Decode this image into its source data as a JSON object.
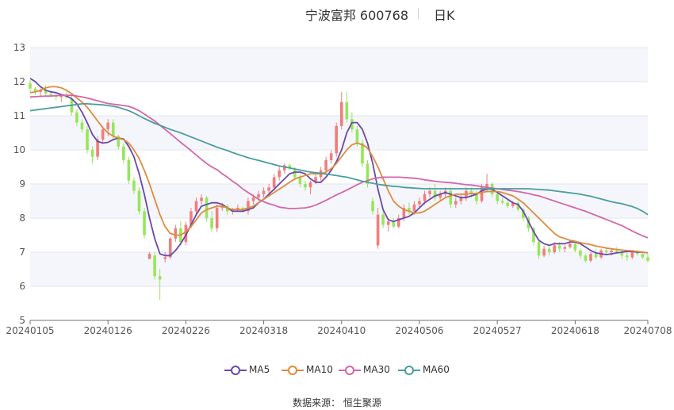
{
  "header": {
    "title": "宁波富邦 600768",
    "period": "日K"
  },
  "source": "数据来源：  恒生聚源",
  "chart_data": {
    "type": "candlestick",
    "y_ticks": [
      "5",
      "6",
      "7",
      "8",
      "9",
      "10",
      "11",
      "12",
      "13"
    ],
    "ylim": [
      5,
      13
    ],
    "x_tick_labels": [
      "20240105",
      "20240126",
      "20240226",
      "20240318",
      "20240410",
      "20240506",
      "20240527",
      "20240618",
      "20240708"
    ],
    "x_tick_index": [
      0,
      15,
      30,
      45,
      60,
      75,
      90,
      105,
      119
    ],
    "num_bars": 120,
    "grid": true,
    "legend_position": "bottom",
    "colors": {
      "up": "#f07d7d",
      "down": "#96e65a",
      "MA5": "#6a48a8",
      "MA10": "#e08a3c",
      "MA30": "#d466a8",
      "MA60": "#4a9da0"
    },
    "ohlc": [
      [
        11.95,
        12.05,
        11.7,
        11.8
      ],
      [
        11.8,
        11.85,
        11.6,
        11.7
      ],
      [
        11.7,
        11.8,
        11.55,
        11.75
      ],
      [
        11.75,
        11.9,
        11.6,
        11.65
      ],
      [
        11.65,
        11.75,
        11.55,
        11.6
      ],
      [
        11.6,
        11.7,
        11.45,
        11.55
      ],
      [
        11.55,
        11.65,
        11.4,
        11.6
      ],
      [
        11.6,
        11.7,
        11.5,
        11.55
      ],
      [
        11.5,
        11.6,
        11.0,
        11.1
      ],
      [
        11.1,
        11.2,
        10.7,
        10.8
      ],
      [
        10.8,
        10.9,
        10.5,
        10.6
      ],
      [
        10.6,
        10.7,
        9.9,
        10.0
      ],
      [
        10.0,
        10.1,
        9.6,
        9.8
      ],
      [
        9.8,
        10.4,
        9.7,
        10.3
      ],
      [
        10.3,
        10.7,
        10.2,
        10.6
      ],
      [
        10.6,
        10.9,
        10.4,
        10.8
      ],
      [
        10.8,
        10.9,
        10.3,
        10.4
      ],
      [
        10.4,
        10.45,
        10.0,
        10.1
      ],
      [
        10.1,
        10.2,
        9.6,
        9.7
      ],
      [
        9.7,
        9.8,
        9.0,
        9.1
      ],
      [
        9.1,
        9.2,
        8.7,
        8.8
      ],
      [
        8.8,
        8.9,
        8.1,
        8.2
      ],
      [
        8.2,
        8.3,
        7.4,
        7.5
      ],
      [
        6.8,
        7.0,
        6.8,
        6.95
      ],
      [
        6.9,
        7.0,
        6.2,
        6.3
      ],
      [
        6.3,
        6.5,
        5.6,
        6.2
      ],
      [
        6.8,
        7.0,
        6.7,
        6.85
      ],
      [
        6.85,
        7.45,
        6.8,
        7.4
      ],
      [
        7.4,
        7.8,
        7.3,
        7.7
      ],
      [
        7.7,
        7.9,
        7.2,
        7.3
      ],
      [
        7.3,
        7.9,
        7.2,
        7.8
      ],
      [
        7.8,
        8.3,
        7.7,
        8.2
      ],
      [
        8.2,
        8.6,
        8.1,
        8.5
      ],
      [
        8.5,
        8.7,
        8.4,
        8.6
      ],
      [
        8.6,
        8.65,
        7.9,
        8.0
      ],
      [
        8.0,
        8.2,
        7.6,
        7.7
      ],
      [
        7.7,
        8.4,
        7.6,
        8.3
      ],
      [
        8.3,
        8.45,
        8.2,
        8.35
      ],
      [
        8.35,
        8.4,
        8.1,
        8.2
      ],
      [
        8.2,
        8.3,
        8.1,
        8.25
      ],
      [
        8.25,
        8.4,
        8.2,
        8.3
      ],
      [
        8.3,
        8.35,
        8.15,
        8.2
      ],
      [
        8.2,
        8.6,
        8.1,
        8.5
      ],
      [
        8.5,
        8.7,
        8.4,
        8.6
      ],
      [
        8.6,
        8.8,
        8.5,
        8.7
      ],
      [
        8.7,
        8.9,
        8.6,
        8.8
      ],
      [
        8.8,
        9.0,
        8.7,
        8.9
      ],
      [
        8.9,
        9.3,
        8.8,
        9.2
      ],
      [
        9.2,
        9.5,
        9.1,
        9.4
      ],
      [
        9.4,
        9.6,
        9.3,
        9.55
      ],
      [
        9.55,
        9.6,
        9.4,
        9.45
      ],
      [
        9.45,
        9.5,
        9.1,
        9.2
      ],
      [
        9.2,
        9.3,
        8.9,
        9.0
      ],
      [
        9.0,
        9.1,
        8.8,
        8.9
      ],
      [
        8.9,
        9.1,
        8.7,
        9.05
      ],
      [
        9.05,
        9.3,
        9.0,
        9.2
      ],
      [
        9.2,
        9.5,
        9.1,
        9.4
      ],
      [
        9.4,
        9.8,
        9.3,
        9.7
      ],
      [
        9.7,
        10.0,
        9.6,
        9.9
      ],
      [
        9.9,
        10.8,
        9.8,
        10.7
      ],
      [
        10.7,
        11.7,
        10.6,
        11.4
      ],
      [
        11.4,
        11.7,
        10.8,
        10.9
      ],
      [
        10.9,
        11.1,
        10.5,
        10.6
      ],
      [
        10.6,
        10.7,
        10.1,
        10.2
      ],
      [
        10.2,
        10.3,
        9.5,
        9.6
      ],
      [
        9.6,
        9.7,
        8.9,
        9.0
      ],
      [
        8.5,
        8.6,
        8.1,
        8.2
      ],
      [
        7.2,
        8.3,
        7.1,
        8.1
      ],
      [
        8.1,
        8.2,
        7.7,
        7.8
      ],
      [
        7.8,
        8.0,
        7.6,
        7.9
      ],
      [
        7.9,
        8.0,
        7.7,
        7.75
      ],
      [
        7.75,
        8.1,
        7.7,
        8.0
      ],
      [
        8.0,
        8.4,
        7.9,
        8.3
      ],
      [
        8.3,
        8.45,
        8.1,
        8.2
      ],
      [
        8.2,
        8.5,
        8.1,
        8.4
      ],
      [
        8.4,
        8.6,
        8.3,
        8.5
      ],
      [
        8.5,
        8.8,
        8.4,
        8.7
      ],
      [
        8.7,
        8.9,
        8.6,
        8.8
      ],
      [
        8.8,
        9.0,
        8.5,
        8.6
      ],
      [
        8.6,
        8.8,
        8.5,
        8.7
      ],
      [
        8.7,
        8.9,
        8.6,
        8.8
      ],
      [
        8.8,
        8.9,
        8.3,
        8.4
      ],
      [
        8.4,
        8.6,
        8.3,
        8.5
      ],
      [
        8.5,
        8.7,
        8.4,
        8.6
      ],
      [
        8.6,
        8.9,
        8.5,
        8.8
      ],
      [
        8.8,
        8.9,
        8.6,
        8.7
      ],
      [
        8.7,
        8.8,
        8.4,
        8.5
      ],
      [
        8.5,
        9.0,
        8.45,
        8.9
      ],
      [
        8.9,
        9.3,
        8.8,
        9.0
      ],
      [
        9.0,
        9.05,
        8.6,
        8.7
      ],
      [
        8.7,
        8.75,
        8.4,
        8.5
      ],
      [
        8.5,
        8.6,
        8.4,
        8.45
      ],
      [
        8.45,
        8.55,
        8.3,
        8.35
      ],
      [
        8.35,
        8.5,
        8.3,
        8.45
      ],
      [
        8.45,
        8.5,
        8.2,
        8.25
      ],
      [
        8.25,
        8.3,
        7.9,
        8.0
      ],
      [
        8.0,
        8.05,
        7.6,
        7.7
      ],
      [
        7.7,
        7.75,
        7.2,
        7.3
      ],
      [
        7.3,
        7.35,
        6.8,
        6.9
      ],
      [
        6.9,
        7.2,
        6.85,
        7.1
      ],
      [
        7.1,
        7.2,
        6.9,
        7.0
      ],
      [
        7.0,
        7.3,
        6.95,
        7.2
      ],
      [
        7.2,
        7.3,
        7.0,
        7.1
      ],
      [
        7.1,
        7.2,
        7.0,
        7.15
      ],
      [
        7.15,
        7.35,
        7.1,
        7.25
      ],
      [
        7.25,
        7.3,
        7.0,
        7.05
      ],
      [
        7.05,
        7.1,
        6.8,
        6.9
      ],
      [
        6.9,
        6.95,
        6.7,
        6.75
      ],
      [
        6.75,
        7.0,
        6.7,
        6.95
      ],
      [
        6.95,
        7.1,
        6.8,
        6.85
      ],
      [
        6.85,
        7.1,
        6.8,
        7.05
      ],
      [
        7.05,
        7.15,
        6.95,
        7.0
      ],
      [
        7.0,
        7.1,
        6.9,
        7.05
      ],
      [
        7.05,
        7.15,
        6.95,
        7.0
      ],
      [
        7.0,
        7.1,
        6.8,
        6.9
      ],
      [
        6.9,
        7.0,
        6.75,
        6.85
      ],
      [
        6.85,
        7.05,
        6.8,
        7.0
      ],
      [
        7.0,
        7.05,
        6.9,
        6.95
      ],
      [
        6.95,
        7.0,
        6.8,
        6.85
      ],
      [
        6.85,
        6.95,
        6.7,
        6.75
      ]
    ],
    "series": [
      {
        "name": "MA5",
        "values": [
          12.1,
          12.0,
          11.85,
          11.75,
          11.7,
          11.68,
          11.62,
          11.58,
          11.5,
          11.35,
          11.1,
          10.8,
          10.45,
          10.25,
          10.2,
          10.22,
          10.3,
          10.35,
          10.32,
          10.1,
          9.8,
          9.3,
          8.7,
          8.0,
          7.4,
          6.95,
          6.9,
          6.9,
          7.05,
          7.25,
          7.5,
          7.8,
          8.1,
          8.35,
          8.4,
          8.45,
          8.45,
          8.4,
          8.3,
          8.2,
          8.2,
          8.2,
          8.25,
          8.3,
          8.45,
          8.55,
          8.7,
          8.85,
          9.0,
          9.15,
          9.3,
          9.35,
          9.35,
          9.3,
          9.15,
          9.05,
          9.05,
          9.2,
          9.4,
          9.65,
          10.0,
          10.5,
          10.8,
          10.8,
          10.6,
          10.2,
          9.6,
          8.85,
          8.25,
          7.95,
          7.9,
          7.95,
          8.0,
          8.05,
          8.15,
          8.3,
          8.45,
          8.55,
          8.65,
          8.7,
          8.75,
          8.7,
          8.65,
          8.6,
          8.6,
          8.65,
          8.7,
          8.8,
          8.85,
          8.85,
          8.75,
          8.65,
          8.55,
          8.45,
          8.4,
          8.2,
          7.9,
          7.6,
          7.35,
          7.25,
          7.2,
          7.25,
          7.25,
          7.25,
          7.3,
          7.3,
          7.25,
          7.15,
          7.05,
          6.98,
          6.95,
          6.93,
          6.95,
          6.98,
          7.0,
          7.02,
          7.02,
          7.0,
          7.0,
          6.98
        ]
      },
      {
        "name": "MA10",
        "values": [
          11.68,
          11.7,
          11.75,
          11.82,
          11.85,
          11.85,
          11.82,
          11.75,
          11.65,
          11.52,
          11.4,
          11.25,
          11.05,
          10.85,
          10.65,
          10.5,
          10.4,
          10.35,
          10.3,
          10.2,
          10.0,
          9.75,
          9.4,
          9.0,
          8.55,
          8.1,
          7.75,
          7.55,
          7.5,
          7.5,
          7.6,
          7.75,
          7.95,
          8.15,
          8.25,
          8.3,
          8.35,
          8.35,
          8.3,
          8.25,
          8.25,
          8.25,
          8.3,
          8.35,
          8.45,
          8.55,
          8.65,
          8.75,
          8.85,
          8.95,
          9.05,
          9.15,
          9.2,
          9.25,
          9.3,
          9.3,
          9.3,
          9.35,
          9.45,
          9.6,
          9.8,
          10.0,
          10.15,
          10.2,
          10.15,
          10.05,
          9.8,
          9.5,
          9.15,
          8.8,
          8.5,
          8.35,
          8.25,
          8.2,
          8.15,
          8.15,
          8.2,
          8.3,
          8.4,
          8.5,
          8.6,
          8.65,
          8.7,
          8.7,
          8.7,
          8.72,
          8.72,
          8.75,
          8.78,
          8.78,
          8.78,
          8.75,
          8.7,
          8.65,
          8.55,
          8.45,
          8.3,
          8.15,
          8.0,
          7.85,
          7.7,
          7.55,
          7.45,
          7.4,
          7.35,
          7.32,
          7.28,
          7.25,
          7.22,
          7.18,
          7.15,
          7.12,
          7.1,
          7.08,
          7.06,
          7.05,
          7.04,
          7.02,
          7.0,
          6.98
        ]
      },
      {
        "name": "MA30",
        "values": [
          11.55,
          11.56,
          11.57,
          11.58,
          11.58,
          11.59,
          11.6,
          11.6,
          11.6,
          11.58,
          11.55,
          11.52,
          11.48,
          11.44,
          11.4,
          11.36,
          11.34,
          11.32,
          11.3,
          11.28,
          11.22,
          11.15,
          11.05,
          10.95,
          10.85,
          10.72,
          10.6,
          10.48,
          10.35,
          10.22,
          10.1,
          9.98,
          9.85,
          9.72,
          9.6,
          9.5,
          9.42,
          9.3,
          9.2,
          9.08,
          8.98,
          8.85,
          8.75,
          8.65,
          8.55,
          8.48,
          8.42,
          8.38,
          8.32,
          8.3,
          8.28,
          8.28,
          8.29,
          8.3,
          8.33,
          8.38,
          8.45,
          8.52,
          8.6,
          8.68,
          8.75,
          8.82,
          8.9,
          8.98,
          9.05,
          9.1,
          9.15,
          9.18,
          9.2,
          9.2,
          9.2,
          9.2,
          9.19,
          9.18,
          9.17,
          9.15,
          9.12,
          9.1,
          9.08,
          9.06,
          9.05,
          9.04,
          9.02,
          9.0,
          8.98,
          8.97,
          8.95,
          8.92,
          8.9,
          8.88,
          8.86,
          8.84,
          8.82,
          8.8,
          8.78,
          8.75,
          8.72,
          8.68,
          8.65,
          8.6,
          8.55,
          8.5,
          8.45,
          8.4,
          8.35,
          8.3,
          8.25,
          8.2,
          8.14,
          8.08,
          8.02,
          7.96,
          7.9,
          7.84,
          7.78,
          7.7,
          7.62,
          7.55,
          7.48,
          7.42
        ]
      },
      {
        "name": "MA60",
        "values": [
          11.15,
          11.17,
          11.19,
          11.21,
          11.23,
          11.25,
          11.27,
          11.29,
          11.31,
          11.33,
          11.35,
          11.35,
          11.34,
          11.33,
          11.32,
          11.3,
          11.28,
          11.25,
          11.2,
          11.15,
          11.08,
          11.0,
          10.92,
          10.85,
          10.78,
          10.72,
          10.66,
          10.6,
          10.55,
          10.5,
          10.44,
          10.38,
          10.32,
          10.26,
          10.2,
          10.14,
          10.08,
          10.03,
          9.98,
          9.92,
          9.87,
          9.82,
          9.77,
          9.73,
          9.69,
          9.65,
          9.61,
          9.57,
          9.53,
          9.5,
          9.47,
          9.44,
          9.41,
          9.38,
          9.35,
          9.33,
          9.31,
          9.29,
          9.27,
          9.25,
          9.22,
          9.2,
          9.16,
          9.12,
          9.08,
          9.05,
          9.02,
          8.99,
          8.97,
          8.95,
          8.93,
          8.92,
          8.9,
          8.89,
          8.88,
          8.87,
          8.86,
          8.86,
          8.86,
          8.86,
          8.86,
          8.86,
          8.86,
          8.86,
          8.86,
          8.86,
          8.86,
          8.86,
          8.86,
          8.86,
          8.86,
          8.86,
          8.86,
          8.86,
          8.86,
          8.86,
          8.86,
          8.85,
          8.84,
          8.83,
          8.82,
          8.8,
          8.78,
          8.76,
          8.74,
          8.72,
          8.7,
          8.67,
          8.64,
          8.6,
          8.56,
          8.52,
          8.48,
          8.45,
          8.42,
          8.38,
          8.34,
          8.28,
          8.2,
          8.1
        ]
      }
    ]
  }
}
